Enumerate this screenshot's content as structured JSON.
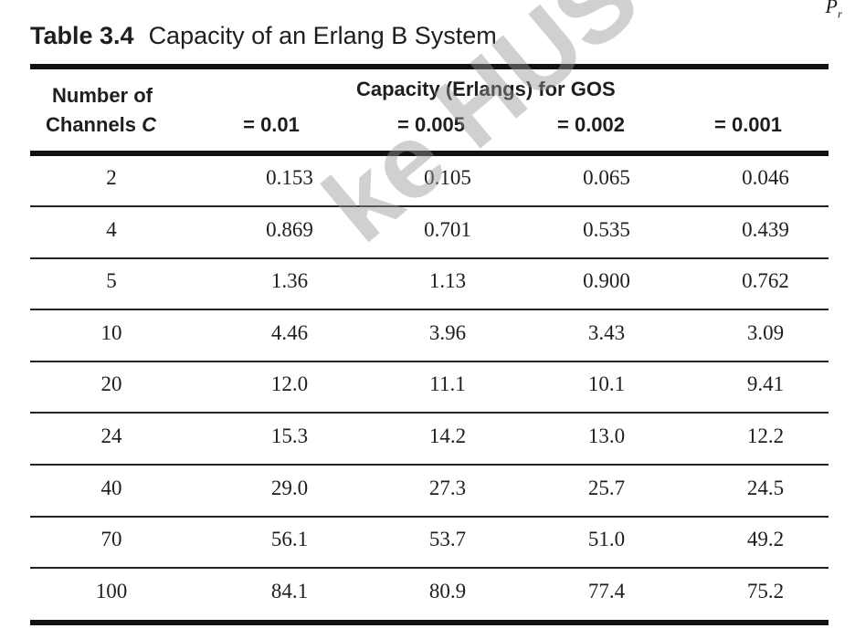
{
  "corner_symbol": {
    "main": "P",
    "sub": "r"
  },
  "caption": {
    "number": "Table 3.4",
    "title": "Capacity of an Erlang B System"
  },
  "header": {
    "row_label_line1": "Number of",
    "row_label_line2": "Channels",
    "row_label_var": "C",
    "span_title": "Capacity (Erlangs) for GOS",
    "columns": [
      "= 0.01",
      "= 0.005",
      "= 0.002",
      "= 0.001"
    ]
  },
  "rows": [
    {
      "channels": "2",
      "values": [
        "0.153",
        "0.105",
        "0.065",
        "0.046"
      ]
    },
    {
      "channels": "4",
      "values": [
        "0.869",
        "0.701",
        "0.535",
        "0.439"
      ]
    },
    {
      "channels": "5",
      "values": [
        "1.36",
        "1.13",
        "0.900",
        "0.762"
      ]
    },
    {
      "channels": "10",
      "values": [
        "4.46",
        "3.96",
        "3.43",
        "3.09"
      ]
    },
    {
      "channels": "20",
      "values": [
        "12.0",
        "11.1",
        "10.1",
        "9.41"
      ]
    },
    {
      "channels": "24",
      "values": [
        "15.3",
        "14.2",
        "13.0",
        "12.2"
      ]
    },
    {
      "channels": "40",
      "values": [
        "29.0",
        "27.3",
        "25.7",
        "24.5"
      ]
    },
    {
      "channels": "70",
      "values": [
        "56.1",
        "53.7",
        "51.0",
        "49.2"
      ]
    },
    {
      "channels": "100",
      "values": [
        "84.1",
        "80.9",
        "77.4",
        "75.2"
      ]
    }
  ],
  "watermark": "ke HUST"
}
